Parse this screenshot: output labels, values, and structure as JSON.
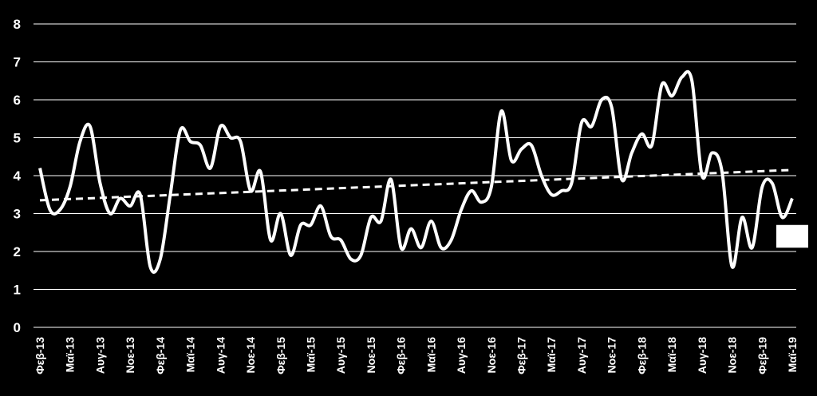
{
  "chart_data": {
    "type": "line",
    "title": "",
    "xlabel": "",
    "ylabel": "",
    "ylim": [
      0,
      8
    ],
    "yticks": [
      0,
      1,
      2,
      3,
      4,
      5,
      6,
      7,
      8
    ],
    "grid": true,
    "x_tick_labels": [
      "Φεβ-13",
      "Μαϊ-13",
      "Αυγ-13",
      "Νοε-13",
      "Φεβ-14",
      "Μαϊ-14",
      "Αυγ-14",
      "Νοε-14",
      "Φεβ-15",
      "Μαϊ-15",
      "Αυγ-15",
      "Νοε-15",
      "Φεβ-16",
      "Μαϊ-16",
      "Αυγ-16",
      "Νοε-16",
      "Φεβ-17",
      "Μαϊ-17",
      "Αυγ-17",
      "Νοε-17",
      "Φεβ-18",
      "Μαϊ-18",
      "Αυγ-18",
      "Νοε-18",
      "Φεβ-19",
      "Μαϊ-19"
    ],
    "series": [
      {
        "style": "solid",
        "color": "#ffffff",
        "values": [
          4.2,
          3.1,
          3.1,
          3.7,
          4.9,
          5.3,
          3.8,
          3.0,
          3.4,
          3.2,
          3.5,
          1.6,
          1.8,
          3.5,
          5.2,
          4.9,
          4.8,
          4.2,
          5.3,
          5.0,
          4.9,
          3.6,
          4.1,
          2.3,
          3.0,
          1.9,
          2.7,
          2.7,
          3.2,
          2.4,
          2.3,
          1.8,
          1.9,
          2.9,
          2.8,
          3.9,
          2.1,
          2.6,
          2.1,
          2.8,
          2.1,
          2.3,
          3.1,
          3.6,
          3.3,
          3.7,
          5.7,
          4.4,
          4.7,
          4.8,
          4.0,
          3.5,
          3.6,
          3.8,
          5.4,
          5.3,
          6.0,
          5.8,
          3.9,
          4.6,
          5.1,
          4.8,
          6.4,
          6.1,
          6.6,
          6.5,
          4.0,
          4.6,
          4.1,
          1.6,
          2.9,
          2.1,
          3.7,
          3.8,
          2.9,
          3.4
        ]
      },
      {
        "style": "dashed",
        "color": "#ffffff",
        "type": "trendline",
        "values_start_end": [
          3.35,
          4.15
        ]
      }
    ],
    "annotation_marker": {
      "shape": "rectangle",
      "color": "#ffffff",
      "y_range": [
        2.1,
        2.7
      ]
    }
  }
}
